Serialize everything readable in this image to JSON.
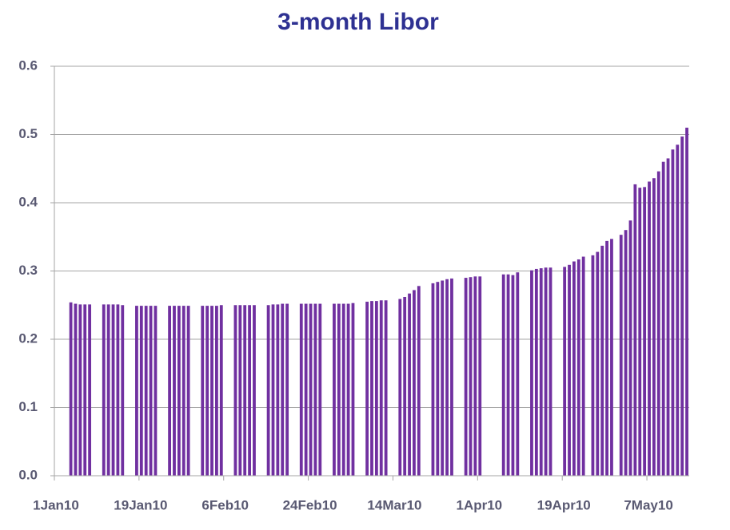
{
  "chart_data": {
    "type": "bar",
    "title": "3-month Libor",
    "color": "#7030a0",
    "x": [
      "2010-01-04",
      "2010-01-05",
      "2010-01-06",
      "2010-01-07",
      "2010-01-08",
      "2010-01-11",
      "2010-01-12",
      "2010-01-13",
      "2010-01-14",
      "2010-01-15",
      "2010-01-18",
      "2010-01-19",
      "2010-01-20",
      "2010-01-21",
      "2010-01-22",
      "2010-01-25",
      "2010-01-26",
      "2010-01-27",
      "2010-01-28",
      "2010-01-29",
      "2010-02-01",
      "2010-02-02",
      "2010-02-03",
      "2010-02-04",
      "2010-02-05",
      "2010-02-08",
      "2010-02-09",
      "2010-02-10",
      "2010-02-11",
      "2010-02-12",
      "2010-02-15",
      "2010-02-16",
      "2010-02-17",
      "2010-02-18",
      "2010-02-19",
      "2010-02-22",
      "2010-02-23",
      "2010-02-24",
      "2010-02-25",
      "2010-02-26",
      "2010-03-01",
      "2010-03-02",
      "2010-03-03",
      "2010-03-04",
      "2010-03-05",
      "2010-03-08",
      "2010-03-09",
      "2010-03-10",
      "2010-03-11",
      "2010-03-12",
      "2010-03-15",
      "2010-03-16",
      "2010-03-17",
      "2010-03-18",
      "2010-03-19",
      "2010-03-22",
      "2010-03-23",
      "2010-03-24",
      "2010-03-25",
      "2010-03-26",
      "2010-03-29",
      "2010-03-30",
      "2010-03-31",
      "2010-04-01",
      "2010-04-06",
      "2010-04-07",
      "2010-04-08",
      "2010-04-09",
      "2010-04-12",
      "2010-04-13",
      "2010-04-14",
      "2010-04-15",
      "2010-04-16",
      "2010-04-19",
      "2010-04-20",
      "2010-04-21",
      "2010-04-22",
      "2010-04-23",
      "2010-04-25",
      "2010-04-26",
      "2010-04-27",
      "2010-04-28",
      "2010-04-29",
      "2010-05-01",
      "2010-05-02",
      "2010-05-03",
      "2010-05-04",
      "2010-05-05",
      "2010-05-06",
      "2010-05-07",
      "2010-05-08",
      "2010-05-09",
      "2010-05-10",
      "2010-05-11",
      "2010-05-12",
      "2010-05-13",
      "2010-05-14",
      "2010-05-15"
    ],
    "values": [
      0.254,
      0.252,
      0.251,
      0.251,
      0.251,
      0.251,
      0.251,
      0.251,
      0.251,
      0.25,
      0.249,
      0.249,
      0.249,
      0.249,
      0.249,
      0.249,
      0.249,
      0.249,
      0.249,
      0.249,
      0.249,
      0.249,
      0.249,
      0.249,
      0.25,
      0.25,
      0.25,
      0.25,
      0.25,
      0.25,
      0.25,
      0.251,
      0.251,
      0.252,
      0.252,
      0.252,
      0.252,
      0.252,
      0.252,
      0.252,
      0.252,
      0.252,
      0.252,
      0.252,
      0.253,
      0.255,
      0.256,
      0.256,
      0.257,
      0.257,
      0.259,
      0.262,
      0.267,
      0.272,
      0.278,
      0.282,
      0.284,
      0.286,
      0.288,
      0.289,
      0.29,
      0.291,
      0.292,
      0.292,
      0.295,
      0.295,
      0.294,
      0.298,
      0.301,
      0.303,
      0.304,
      0.305,
      0.305,
      0.306,
      0.309,
      0.314,
      0.317,
      0.321,
      0.323,
      0.328,
      0.337,
      0.344,
      0.347,
      0.353,
      0.36,
      0.374,
      0.427,
      0.422,
      0.423,
      0.431,
      0.436,
      0.446,
      0.46,
      0.465,
      0.478,
      0.485,
      0.497,
      0.51
    ],
    "xlim": [
      "2010-01-01",
      "2010-05-15"
    ],
    "xticks": [
      {
        "value": "2010-01-01",
        "label": "1Jan10"
      },
      {
        "value": "2010-01-19",
        "label": "19Jan10"
      },
      {
        "value": "2010-02-06",
        "label": "6Feb10"
      },
      {
        "value": "2010-02-24",
        "label": "24Feb10"
      },
      {
        "value": "2010-03-14",
        "label": "14Mar10"
      },
      {
        "value": "2010-04-01",
        "label": "1Apr10"
      },
      {
        "value": "2010-04-19",
        "label": "19Apr10"
      },
      {
        "value": "2010-05-07",
        "label": "7May10"
      }
    ],
    "ylim": [
      0,
      0.6
    ],
    "yticks": [
      {
        "value": 0,
        "label": "0.0"
      },
      0.1,
      0.2,
      0.3,
      0.4,
      0.5,
      0.6
    ],
    "grid": true
  }
}
